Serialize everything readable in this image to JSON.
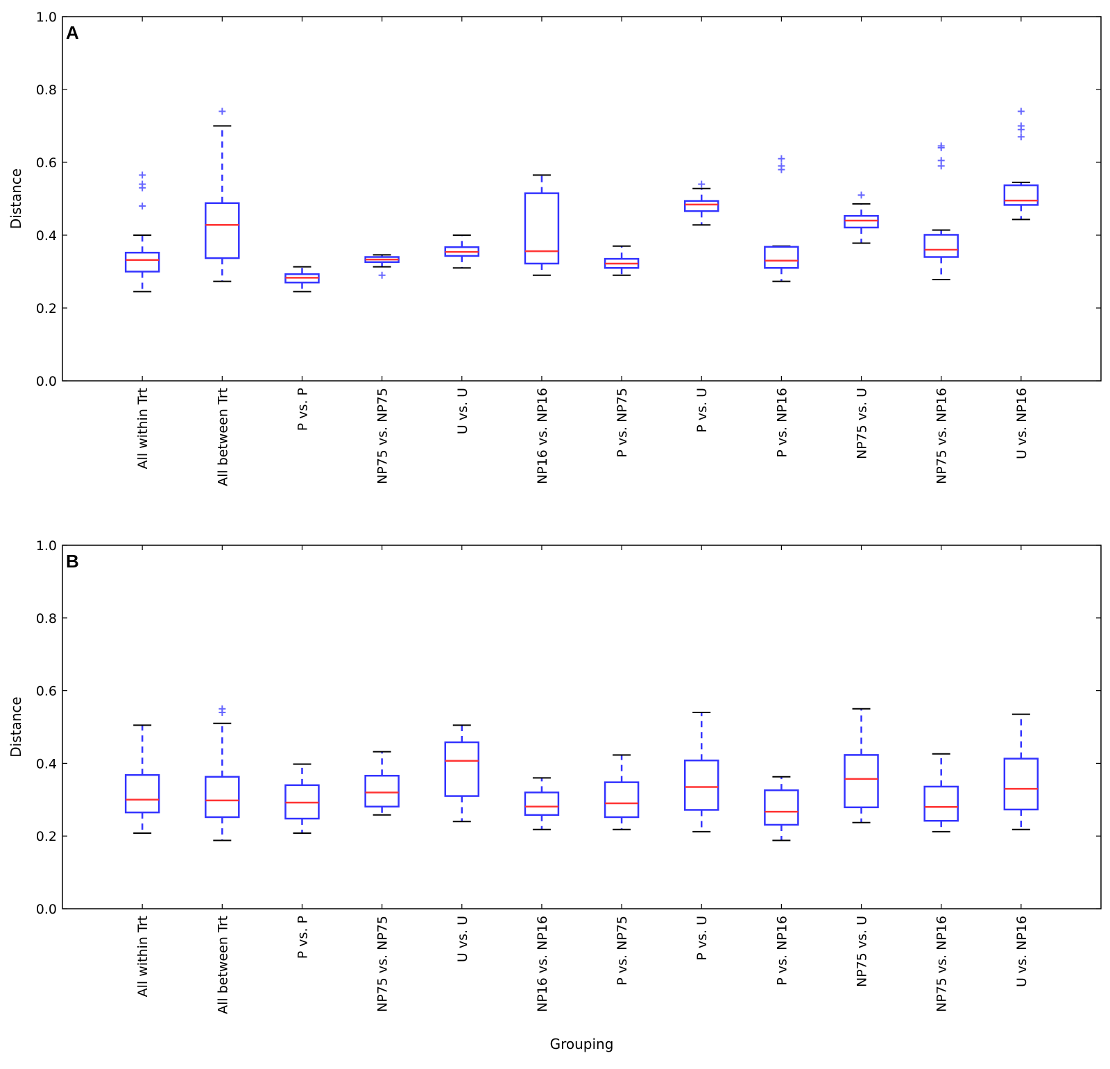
{
  "chart_data": [
    {
      "type": "box",
      "panel_label": "A",
      "ylabel": "Distance",
      "xlabel": "",
      "ylim": [
        0.0,
        1.0
      ],
      "yticks": [
        "0.0",
        "0.2",
        "0.4",
        "0.6",
        "0.8",
        "1.0"
      ],
      "categories": [
        "All within Trt",
        "All between Trt",
        "P vs. P",
        "NP75 vs. NP75",
        "U vs. U",
        "NP16 vs. NP16",
        "P vs. NP75",
        "P vs. U",
        "P vs. NP16",
        "NP75 vs. U",
        "NP75 vs. NP16",
        "U vs. NP16"
      ],
      "boxes": [
        {
          "whislo": 0.245,
          "q1": 0.3,
          "med": 0.332,
          "q3": 0.352,
          "whishi": 0.4,
          "fliers": [
            0.48,
            0.53,
            0.54,
            0.565
          ]
        },
        {
          "whislo": 0.273,
          "q1": 0.337,
          "med": 0.428,
          "q3": 0.488,
          "whishi": 0.7,
          "fliers": [
            0.74
          ]
        },
        {
          "whislo": 0.245,
          "q1": 0.27,
          "med": 0.283,
          "q3": 0.293,
          "whishi": 0.313,
          "fliers": []
        },
        {
          "whislo": 0.313,
          "q1": 0.326,
          "med": 0.333,
          "q3": 0.34,
          "whishi": 0.346,
          "fliers": [
            0.29
          ]
        },
        {
          "whislo": 0.31,
          "q1": 0.343,
          "med": 0.354,
          "q3": 0.367,
          "whishi": 0.4,
          "fliers": []
        },
        {
          "whislo": 0.29,
          "q1": 0.322,
          "med": 0.356,
          "q3": 0.515,
          "whishi": 0.565,
          "fliers": []
        },
        {
          "whislo": 0.29,
          "q1": 0.31,
          "med": 0.322,
          "q3": 0.335,
          "whishi": 0.37,
          "fliers": []
        },
        {
          "whislo": 0.428,
          "q1": 0.466,
          "med": 0.484,
          "q3": 0.494,
          "whishi": 0.528,
          "fliers": [
            0.54
          ]
        },
        {
          "whislo": 0.273,
          "q1": 0.31,
          "med": 0.33,
          "q3": 0.368,
          "whishi": 0.37,
          "fliers": [
            0.58,
            0.59,
            0.61
          ]
        },
        {
          "whislo": 0.378,
          "q1": 0.421,
          "med": 0.44,
          "q3": 0.453,
          "whishi": 0.486,
          "fliers": [
            0.51
          ]
        },
        {
          "whislo": 0.278,
          "q1": 0.34,
          "med": 0.36,
          "q3": 0.401,
          "whishi": 0.414,
          "fliers": [
            0.59,
            0.605,
            0.64,
            0.645
          ]
        },
        {
          "whislo": 0.443,
          "q1": 0.483,
          "med": 0.495,
          "q3": 0.537,
          "whishi": 0.545,
          "fliers": [
            0.67,
            0.69,
            0.7,
            0.74
          ]
        }
      ]
    },
    {
      "type": "box",
      "panel_label": "B",
      "ylabel": "Distance",
      "xlabel": "Grouping",
      "ylim": [
        0.0,
        1.0
      ],
      "yticks": [
        "0.0",
        "0.2",
        "0.4",
        "0.6",
        "0.8",
        "1.0"
      ],
      "categories": [
        "All within Trt",
        "All between Trt",
        "P vs. P",
        "NP75 vs. NP75",
        "U vs. U",
        "NP16 vs. NP16",
        "P vs. NP75",
        "P vs. U",
        "P vs. NP16",
        "NP75 vs. U",
        "NP75 vs. NP16",
        "U vs. NP16"
      ],
      "boxes": [
        {
          "whislo": 0.208,
          "q1": 0.265,
          "med": 0.3,
          "q3": 0.368,
          "whishi": 0.505,
          "fliers": []
        },
        {
          "whislo": 0.188,
          "q1": 0.252,
          "med": 0.298,
          "q3": 0.363,
          "whishi": 0.51,
          "fliers": [
            0.54,
            0.55
          ]
        },
        {
          "whislo": 0.208,
          "q1": 0.248,
          "med": 0.292,
          "q3": 0.34,
          "whishi": 0.398,
          "fliers": []
        },
        {
          "whislo": 0.258,
          "q1": 0.281,
          "med": 0.32,
          "q3": 0.366,
          "whishi": 0.432,
          "fliers": []
        },
        {
          "whislo": 0.24,
          "q1": 0.31,
          "med": 0.407,
          "q3": 0.458,
          "whishi": 0.505,
          "fliers": []
        },
        {
          "whislo": 0.218,
          "q1": 0.258,
          "med": 0.281,
          "q3": 0.32,
          "whishi": 0.36,
          "fliers": []
        },
        {
          "whislo": 0.218,
          "q1": 0.252,
          "med": 0.29,
          "q3": 0.348,
          "whishi": 0.423,
          "fliers": []
        },
        {
          "whislo": 0.212,
          "q1": 0.272,
          "med": 0.335,
          "q3": 0.408,
          "whishi": 0.54,
          "fliers": []
        },
        {
          "whislo": 0.188,
          "q1": 0.231,
          "med": 0.267,
          "q3": 0.326,
          "whishi": 0.363,
          "fliers": []
        },
        {
          "whislo": 0.237,
          "q1": 0.279,
          "med": 0.357,
          "q3": 0.423,
          "whishi": 0.55,
          "fliers": []
        },
        {
          "whislo": 0.212,
          "q1": 0.242,
          "med": 0.28,
          "q3": 0.336,
          "whishi": 0.426,
          "fliers": []
        },
        {
          "whislo": 0.218,
          "q1": 0.273,
          "med": 0.33,
          "q3": 0.413,
          "whishi": 0.535,
          "fliers": []
        }
      ]
    }
  ],
  "colors": {
    "box": "#3333ff",
    "median": "#ff3333",
    "cap": "#000000",
    "flier": "#6666ff",
    "frame": "#000000"
  }
}
